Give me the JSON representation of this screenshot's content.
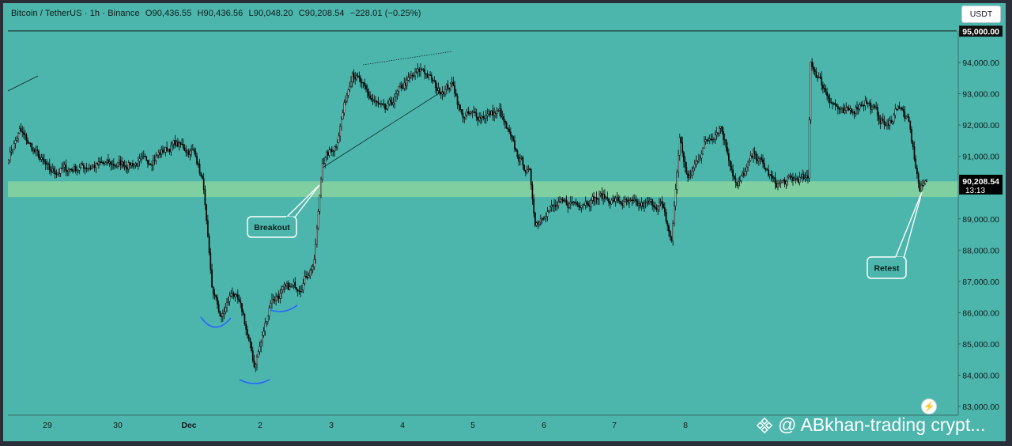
{
  "legend": {
    "symbol": "Bitcoin / TetherUS · 1h · Binance",
    "open": "O90,436.55",
    "high": "H90,436.56",
    "low": "L90,048.20",
    "close": "C90,208.54",
    "change": "−228.01 (−0.25%)"
  },
  "currency_button": "USDT",
  "watermark": "@ ABkhan-trading crypt...",
  "lightning_icon": "lightning-icon",
  "colors": {
    "background": "#4db6ac",
    "support_band": "#80cfa0",
    "candle_up": "#ffffff",
    "candle_down": "#000000",
    "arc": "#2962ff",
    "frame": "#2a2e39"
  },
  "chart_data": {
    "type": "candlestick",
    "symbol": "Bitcoin / TetherUS",
    "interval": "1h",
    "exchange": "Binance",
    "ylim": [
      82800,
      95700
    ],
    "y_ticks": [
      "95,000.00",
      "94,000.00",
      "93,000.00",
      "92,000.00",
      "91,000.00",
      "90,000.00",
      "89,000.00",
      "88,000.00",
      "87,000.00",
      "86,000.00",
      "85,000.00",
      "84,000.00",
      "83,000.00"
    ],
    "x_ticks": [
      "29",
      "30",
      "Dec",
      "2",
      "3",
      "4",
      "5",
      "6",
      "7",
      "8"
    ],
    "current_price": "90,208.54",
    "countdown": "13:13",
    "highlighted_tick": "95,000.00",
    "support_zone": [
      89700,
      90200
    ],
    "annotations": [
      "Breakout",
      "Retest"
    ],
    "key_points": [
      {
        "t": 0,
        "price": 91000
      },
      {
        "t": 8,
        "price": 91800
      },
      {
        "t": 30,
        "price": 90500
      },
      {
        "t": 60,
        "price": 90700
      },
      {
        "t": 100,
        "price": 90800
      },
      {
        "t": 122,
        "price": 91400
      },
      {
        "t": 137,
        "price": 91100
      },
      {
        "t": 143,
        "price": 90000
      },
      {
        "t": 149,
        "price": 86800
      },
      {
        "t": 156,
        "price": 85800
      },
      {
        "t": 164,
        "price": 86700
      },
      {
        "t": 172,
        "price": 85900
      },
      {
        "t": 180,
        "price": 84300
      },
      {
        "t": 186,
        "price": 85200
      },
      {
        "t": 192,
        "price": 86400
      },
      {
        "t": 202,
        "price": 86700
      },
      {
        "t": 214,
        "price": 86900
      },
      {
        "t": 224,
        "price": 87600
      },
      {
        "t": 230,
        "price": 90800
      },
      {
        "t": 240,
        "price": 91400
      },
      {
        "t": 252,
        "price": 93800
      },
      {
        "t": 262,
        "price": 93000
      },
      {
        "t": 276,
        "price": 92400
      },
      {
        "t": 290,
        "price": 93300
      },
      {
        "t": 304,
        "price": 93800
      },
      {
        "t": 315,
        "price": 93100
      },
      {
        "t": 326,
        "price": 93300
      },
      {
        "t": 332,
        "price": 92300
      },
      {
        "t": 345,
        "price": 92300
      },
      {
        "t": 360,
        "price": 92400
      },
      {
        "t": 372,
        "price": 91100
      },
      {
        "t": 382,
        "price": 90400
      },
      {
        "t": 386,
        "price": 88800
      },
      {
        "t": 394,
        "price": 89300
      },
      {
        "t": 412,
        "price": 89500
      },
      {
        "t": 435,
        "price": 89700
      },
      {
        "t": 460,
        "price": 89400
      },
      {
        "t": 478,
        "price": 89500
      },
      {
        "t": 486,
        "price": 88300
      },
      {
        "t": 492,
        "price": 91600
      },
      {
        "t": 498,
        "price": 90200
      },
      {
        "t": 510,
        "price": 91400
      },
      {
        "t": 522,
        "price": 92000
      },
      {
        "t": 534,
        "price": 90000
      },
      {
        "t": 547,
        "price": 91100
      },
      {
        "t": 562,
        "price": 90100
      },
      {
        "t": 580,
        "price": 90300
      },
      {
        "t": 586,
        "price": 90200
      },
      {
        "t": 588,
        "price": 94000
      },
      {
        "t": 600,
        "price": 93000
      },
      {
        "t": 612,
        "price": 92300
      },
      {
        "t": 628,
        "price": 92800
      },
      {
        "t": 645,
        "price": 91900
      },
      {
        "t": 652,
        "price": 92700
      },
      {
        "t": 660,
        "price": 92000
      },
      {
        "t": 668,
        "price": 89900
      },
      {
        "t": 673,
        "price": 90208
      }
    ]
  }
}
